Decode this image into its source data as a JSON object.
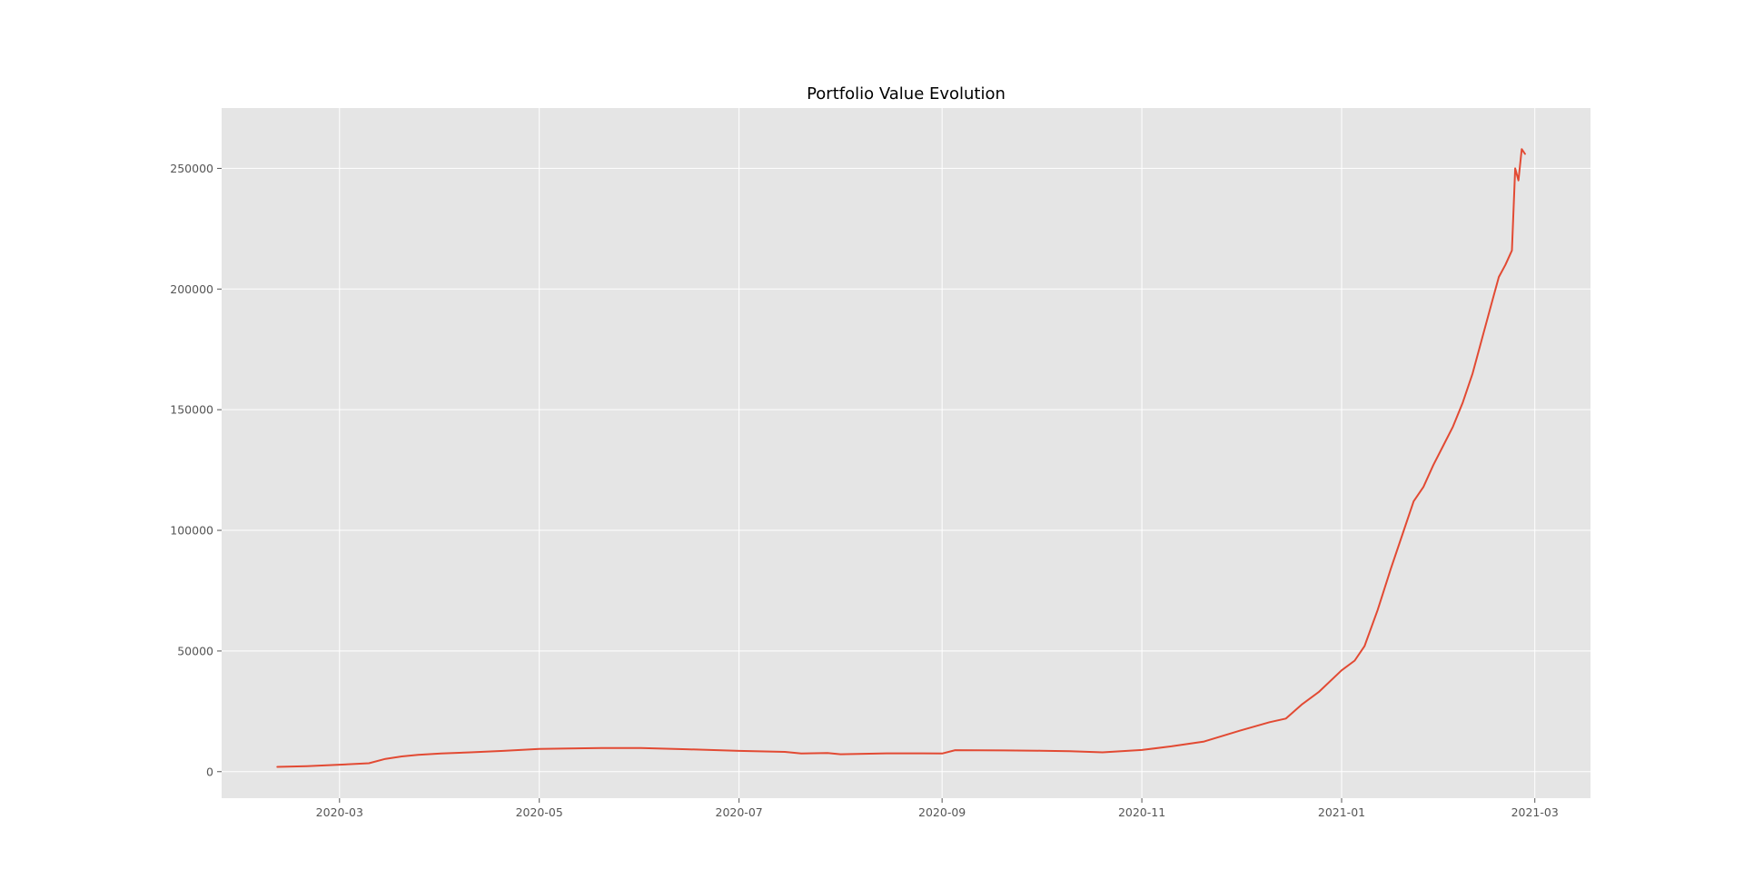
{
  "chart_data": {
    "type": "line",
    "title": "Portfolio Value Evolution",
    "xlabel": "",
    "ylabel": "",
    "x_axis_kind": "date",
    "xlim": [
      "2020-01-25",
      "2021-03-18"
    ],
    "ylim": [
      -11000,
      275000
    ],
    "x_ticks": [
      "2020-03",
      "2020-05",
      "2020-07",
      "2020-09",
      "2020-11",
      "2021-01",
      "2021-03"
    ],
    "y_ticks": [
      0,
      50000,
      100000,
      150000,
      200000,
      250000
    ],
    "grid": true,
    "legend": "none",
    "colors": {
      "line": "#e24a33",
      "plot_background": "#e5e5e5",
      "grid": "#ffffff",
      "tick_text": "#555555"
    },
    "series": [
      {
        "x": [
          "2020-02-11",
          "2020-02-20",
          "2020-03-01",
          "2020-03-10",
          "2020-03-15",
          "2020-03-20",
          "2020-03-25",
          "2020-04-01",
          "2020-04-10",
          "2020-04-20",
          "2020-05-01",
          "2020-05-10",
          "2020-05-20",
          "2020-06-01",
          "2020-06-15",
          "2020-07-01",
          "2020-07-15",
          "2020-07-20",
          "2020-07-28",
          "2020-08-01",
          "2020-08-15",
          "2020-08-25",
          "2020-09-01",
          "2020-09-05",
          "2020-09-20",
          "2020-10-01",
          "2020-10-10",
          "2020-10-20",
          "2020-11-01",
          "2020-11-10",
          "2020-11-20",
          "2020-12-01",
          "2020-12-10",
          "2020-12-15",
          "2020-12-20",
          "2020-12-25",
          "2021-01-01",
          "2021-01-05",
          "2021-01-08",
          "2021-01-12",
          "2021-01-16",
          "2021-01-20",
          "2021-01-23",
          "2021-01-26",
          "2021-01-29",
          "2021-02-01",
          "2021-02-04",
          "2021-02-07",
          "2021-02-10",
          "2021-02-13",
          "2021-02-16",
          "2021-02-18",
          "2021-02-20",
          "2021-02-22",
          "2021-02-23",
          "2021-02-24",
          "2021-02-25",
          "2021-02-26"
        ],
        "values": [
          2000,
          2300,
          2900,
          3500,
          5300,
          6300,
          7000,
          7500,
          8000,
          8600,
          9400,
          9600,
          9800,
          9800,
          9300,
          8600,
          8200,
          7500,
          7700,
          7200,
          7600,
          7600,
          7500,
          8900,
          8800,
          8700,
          8500,
          8000,
          9000,
          10500,
          12500,
          17000,
          20500,
          22000,
          28000,
          33000,
          42000,
          46000,
          52000,
          67000,
          84000,
          100000,
          112000,
          118000,
          127000,
          135000,
          143000,
          153000,
          165000,
          180000,
          195000,
          205000,
          210000,
          216000,
          250000,
          245000,
          258000,
          256000
        ]
      }
    ]
  }
}
